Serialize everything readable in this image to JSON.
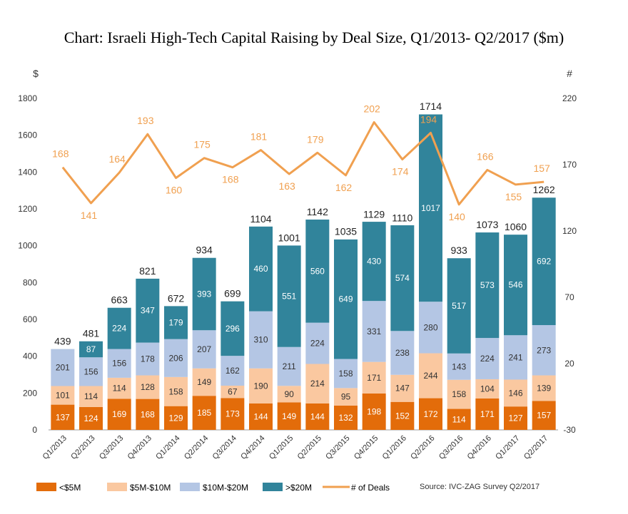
{
  "title": "Chart: Israeli High-Tech Capital Raising by Deal Size, Q1/2013- Q2/2017 ($m)",
  "source": "Source: IVC-ZAG Survey Q2/2017",
  "colors": {
    "lt5": "#E36C0A",
    "5to10": "#FAC8A0",
    "10to20": "#B4C6E4",
    "gt20": "#31849B",
    "deals": "#F0A050"
  },
  "chart_data": {
    "type": "bar",
    "stacked": true,
    "categories": [
      "Q1/2013",
      "Q2/2013",
      "Q3/2013",
      "Q4/2013",
      "Q1/2014",
      "Q2/2014",
      "Q3/2014",
      "Q4/2014",
      "Q1/2015",
      "Q2/2015",
      "Q3/2015",
      "Q4/2015",
      "Q1/2016",
      "Q2/2016",
      "Q3/2016",
      "Q4/2016",
      "Q1/2017",
      "Q2/2017"
    ],
    "series": [
      {
        "name": "<$5M",
        "values": [
          137,
          124,
          169,
          168,
          129,
          185,
          173,
          144,
          149,
          144,
          132,
          198,
          152,
          172,
          114,
          171,
          127,
          157
        ]
      },
      {
        "name": "$5M-$10M",
        "values": [
          101,
          114,
          114,
          128,
          158,
          149,
          67,
          190,
          90,
          214,
          95,
          171,
          147,
          244,
          158,
          104,
          146,
          139
        ]
      },
      {
        "name": "$10M-$20M",
        "values": [
          201,
          156,
          156,
          178,
          206,
          207,
          162,
          310,
          211,
          224,
          158,
          331,
          238,
          280,
          143,
          224,
          241,
          273
        ]
      },
      {
        "name": ">$20M",
        "values": [
          null,
          87,
          224,
          347,
          179,
          393,
          296,
          460,
          551,
          560,
          649,
          430,
          574,
          1017,
          517,
          573,
          546,
          692
        ]
      }
    ],
    "totals": [
      439,
      481,
      663,
      821,
      672,
      934,
      699,
      1104,
      1001,
      1142,
      1035,
      1129,
      1110,
      1714,
      933,
      1073,
      1060,
      1262
    ],
    "line": {
      "name": "# of Deals",
      "axis": "right",
      "values": [
        168,
        141,
        164,
        193,
        160,
        175,
        168,
        181,
        163,
        179,
        162,
        202,
        174,
        194,
        140,
        166,
        155,
        157
      ]
    },
    "ylabel": "$",
    "y2label": "#",
    "ylim": [
      0,
      1800
    ],
    "yticks": [
      0,
      200,
      400,
      600,
      800,
      1000,
      1200,
      1400,
      1600,
      1800
    ],
    "y2lim": [
      -30,
      220
    ],
    "y2ticks": [
      -30,
      20,
      70,
      120,
      170,
      220
    ],
    "legend_position": "bottom"
  }
}
